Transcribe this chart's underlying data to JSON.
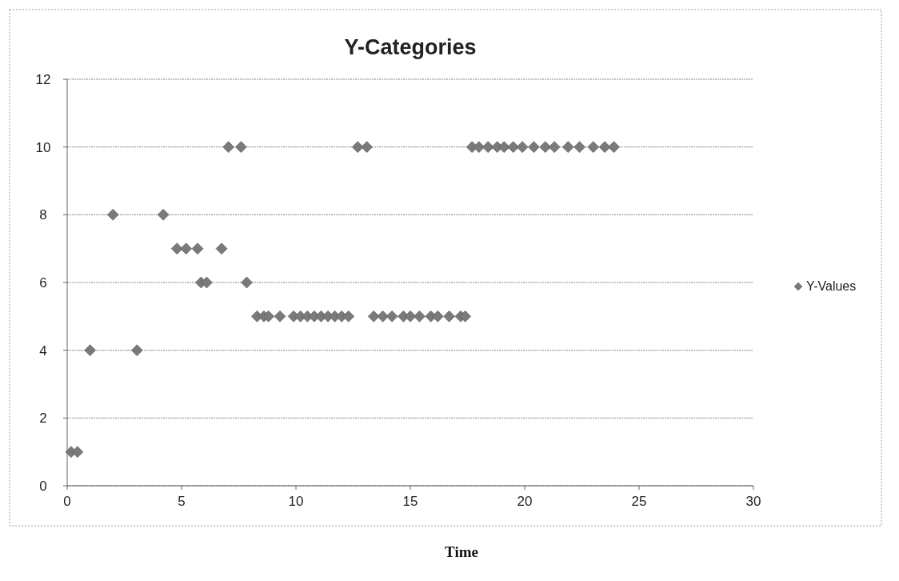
{
  "chart_data": {
    "type": "scatter",
    "title": "Y-Categories",
    "xlabel": "Time",
    "series": [
      {
        "name": "Y-Values",
        "color": "#7a7a7a",
        "x": [
          0.17,
          0.45,
          1.0,
          3.05,
          2.0,
          4.2,
          4.8,
          5.2,
          5.7,
          6.75,
          5.85,
          6.1,
          7.85,
          7.05,
          7.6,
          12.7,
          13.1,
          17.7,
          18.0,
          18.4,
          18.8,
          19.1,
          19.5,
          19.9,
          20.4,
          20.9,
          21.3,
          21.9,
          22.4,
          23.0,
          23.5,
          23.9,
          8.3,
          8.6,
          8.8,
          9.3,
          9.9,
          10.2,
          10.5,
          10.8,
          11.1,
          11.4,
          11.7,
          12.0,
          12.3,
          13.4,
          13.8,
          14.2,
          14.7,
          15.0,
          15.4,
          15.9,
          16.2,
          16.7,
          17.2,
          17.4
        ],
        "values": [
          1,
          1,
          4,
          4,
          8,
          8,
          7,
          7,
          7,
          7,
          6,
          6,
          6,
          10,
          10,
          10,
          10,
          10,
          10,
          10,
          10,
          10,
          10,
          10,
          10,
          10,
          10,
          10,
          10,
          10,
          10,
          10,
          5,
          5,
          5,
          5,
          5,
          5,
          5,
          5,
          5,
          5,
          5,
          5,
          5,
          5,
          5,
          5,
          5,
          5,
          5,
          5,
          5,
          5,
          5,
          5
        ]
      }
    ],
    "xlim": [
      0,
      30
    ],
    "xticks": [
      0,
      5,
      10,
      15,
      20,
      25,
      30
    ],
    "ylim": [
      0,
      12
    ],
    "yticks": [
      0,
      2,
      4,
      6,
      8,
      10,
      12
    ],
    "grid": "y",
    "legend": "right",
    "marker": "diamond"
  }
}
